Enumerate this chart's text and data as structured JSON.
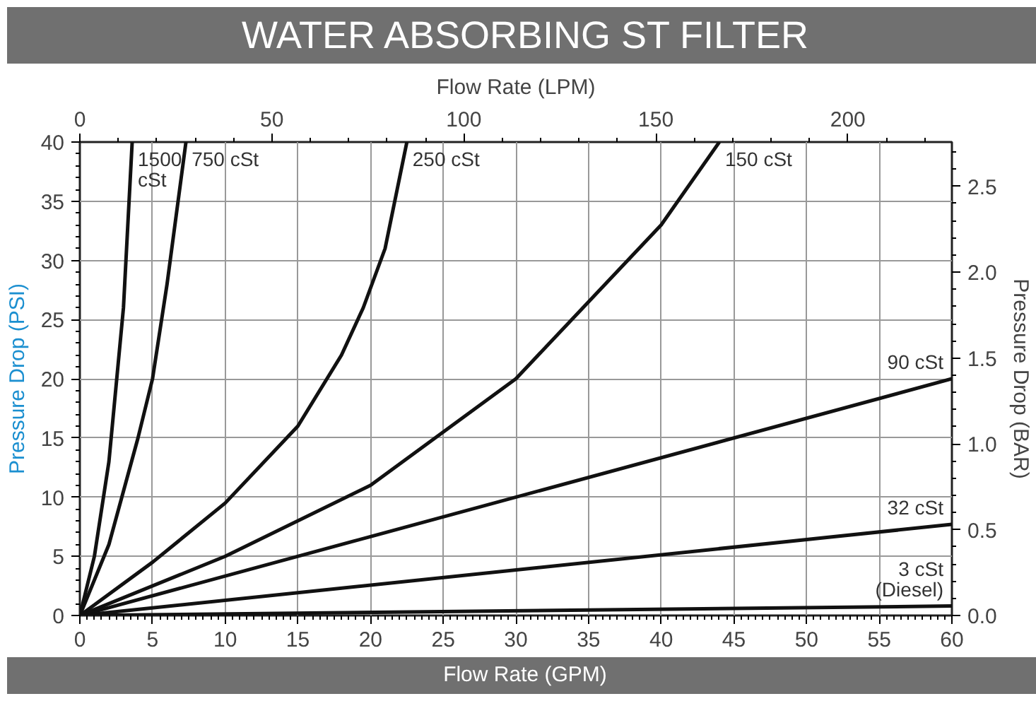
{
  "chart_data": {
    "type": "line",
    "title": "WATER ABSORBING ST FILTER",
    "xlabel": "Flow Rate (GPM)",
    "x2label": "Flow Rate (LPM)",
    "ylabel": "Pressure Drop (PSI)",
    "y2label": "Pressure Drop (BAR)",
    "xlim": [
      0,
      60
    ],
    "xticks": [
      0,
      5,
      10,
      15,
      20,
      25,
      30,
      35,
      40,
      45,
      50,
      55,
      60
    ],
    "x2lim": [
      0,
      227.1
    ],
    "x2ticks": [
      0,
      50,
      100,
      150,
      200
    ],
    "ylim": [
      0,
      40
    ],
    "yticks": [
      0,
      5,
      10,
      15,
      20,
      25,
      30,
      35,
      40
    ],
    "y2lim": [
      0,
      2.758
    ],
    "y2ticks": [
      {
        "value": 0,
        "label": "0.0"
      },
      {
        "value": 0.5,
        "label": "0.5"
      },
      {
        "value": 1,
        "label": "1.0"
      },
      {
        "value": 1.5,
        "label": "1.5"
      },
      {
        "value": 2,
        "label": "2.0"
      },
      {
        "value": 2.5,
        "label": "2.5"
      }
    ],
    "grid": true,
    "marker": "none",
    "line_style": "solid",
    "series": [
      {
        "name": "1500\ncSt",
        "color": "#111111",
        "x": [
          0,
          1,
          2,
          3,
          3.6
        ],
        "values": [
          0,
          5,
          13,
          26,
          40
        ]
      },
      {
        "name": "750 cSt",
        "color": "#111111",
        "x": [
          0,
          2,
          4,
          5,
          6,
          7.3
        ],
        "values": [
          0,
          6,
          15,
          20,
          28,
          40
        ]
      },
      {
        "name": "250 cSt",
        "color": "#111111",
        "x": [
          0,
          5,
          10,
          15,
          18,
          19.5,
          21,
          22.5
        ],
        "values": [
          0,
          4.5,
          9.5,
          16,
          22,
          26,
          31,
          40
        ]
      },
      {
        "name": "150 cSt",
        "color": "#111111",
        "x": [
          0,
          10,
          20,
          30,
          40,
          44
        ],
        "values": [
          0,
          5,
          11,
          20,
          33,
          40
        ]
      },
      {
        "name": "90 cSt",
        "color": "#111111",
        "x": [
          0,
          60
        ],
        "values": [
          0,
          20
        ]
      },
      {
        "name": "32 cSt",
        "color": "#111111",
        "x": [
          0,
          60
        ],
        "values": [
          0,
          7.7
        ]
      },
      {
        "name": "3 cSt\n(Diesel)",
        "color": "#111111",
        "x": [
          0,
          60
        ],
        "values": [
          0,
          0.8
        ]
      }
    ]
  }
}
